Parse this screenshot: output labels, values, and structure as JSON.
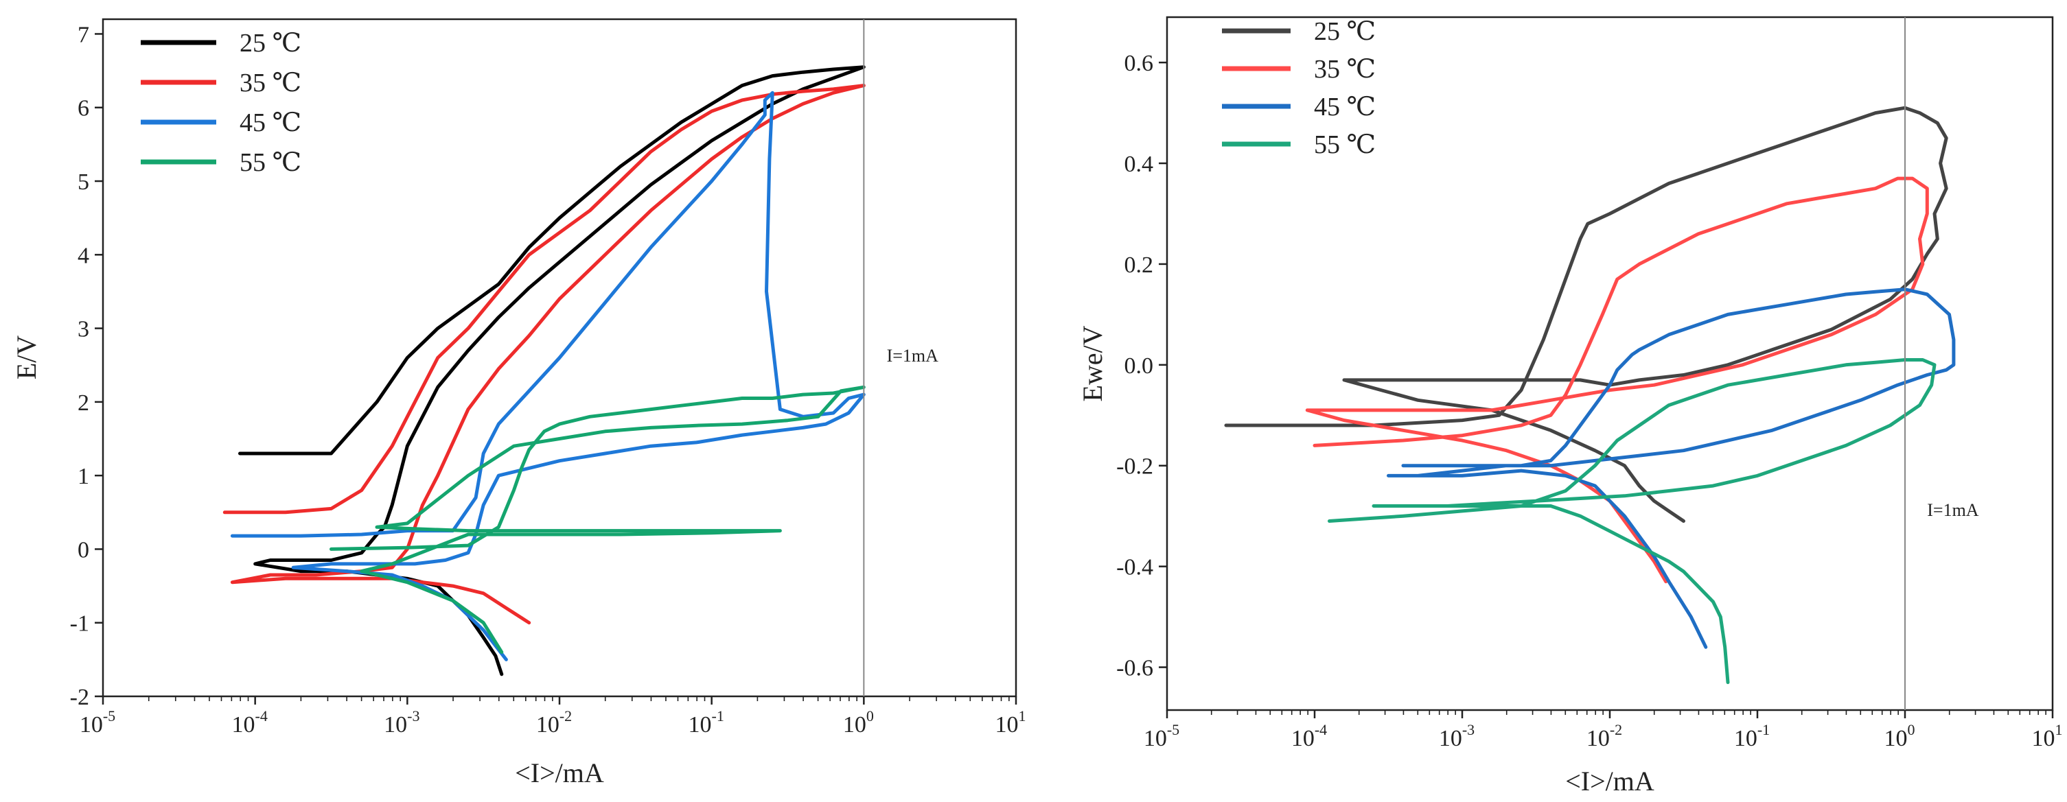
{
  "chart_data": [
    {
      "type": "line",
      "id": "left",
      "xscale": "log",
      "xlabel": "<I>/mA",
      "ylabel": "E/V",
      "xlim": [
        -5,
        1
      ],
      "ylim": [
        -2,
        7.2
      ],
      "xticks": [
        {
          "base": "10",
          "exp": "-5",
          "value": -5
        },
        {
          "base": "10",
          "exp": "-4",
          "value": -4
        },
        {
          "base": "10",
          "exp": "-3",
          "value": -3
        },
        {
          "base": "10",
          "exp": "-2",
          "value": -2
        },
        {
          "base": "10",
          "exp": "-1",
          "value": -1
        },
        {
          "base": "10",
          "exp": "0",
          "value": 0
        },
        {
          "base": "10",
          "exp": "1",
          "value": 1
        }
      ],
      "yticks": [
        {
          "label": "-2",
          "value": -2
        },
        {
          "label": "-1",
          "value": -1
        },
        {
          "label": "0",
          "value": 0
        },
        {
          "label": "1",
          "value": 1
        },
        {
          "label": "2",
          "value": 2
        },
        {
          "label": "3",
          "value": 3
        },
        {
          "label": "4",
          "value": 4
        },
        {
          "label": "5",
          "value": 5
        },
        {
          "label": "6",
          "value": 6
        },
        {
          "label": "7",
          "value": 7
        }
      ],
      "annotation": {
        "text": "I=1mA",
        "x": 0.15,
        "y": 2.55
      },
      "refline_x": 0,
      "series": [
        {
          "name": "25 ℃",
          "color": "#000000",
          "x": [
            -4.1,
            -3.8,
            -3.5,
            -3.2,
            -3.0,
            -2.8,
            -2.6,
            -2.4,
            -2.2,
            -2.0,
            -1.8,
            -1.6,
            -1.4,
            -1.2,
            -1.0,
            -0.8,
            -0.6,
            -0.4,
            -0.2,
            0.0,
            -0.2,
            -0.4,
            -0.6,
            -0.8,
            -1.0,
            -1.2,
            -1.4,
            -1.6,
            -1.8,
            -2.0,
            -2.2,
            -2.4,
            -2.6,
            -2.8,
            -3.0,
            -3.1,
            -3.15,
            -3.2,
            -3.3,
            -3.5,
            -3.9,
            -4.0,
            -3.7,
            -3.4,
            -3.2,
            -3.0,
            -2.8,
            -2.6,
            -2.5,
            -2.42,
            -2.38
          ],
          "y": [
            1.3,
            1.3,
            1.3,
            2.0,
            2.6,
            3.0,
            3.3,
            3.6,
            4.1,
            4.5,
            4.85,
            5.2,
            5.5,
            5.8,
            6.05,
            6.3,
            6.43,
            6.48,
            6.52,
            6.55,
            6.4,
            6.25,
            6.05,
            5.8,
            5.55,
            5.25,
            4.95,
            4.6,
            4.25,
            3.9,
            3.55,
            3.15,
            2.7,
            2.2,
            1.4,
            0.6,
            0.3,
            0.2,
            -0.05,
            -0.15,
            -0.15,
            -0.2,
            -0.3,
            -0.3,
            -0.35,
            -0.4,
            -0.5,
            -0.9,
            -1.2,
            -1.45,
            -1.7
          ]
        },
        {
          "name": "35 ℃",
          "color": "#ee2b2b",
          "x": [
            -4.2,
            -3.8,
            -3.5,
            -3.3,
            -3.1,
            -2.95,
            -2.8,
            -2.6,
            -2.4,
            -2.2,
            -2.0,
            -1.8,
            -1.6,
            -1.4,
            -1.2,
            -1.0,
            -0.8,
            -0.6,
            -0.4,
            -0.2,
            0.0,
            -0.2,
            -0.4,
            -0.6,
            -0.8,
            -1.0,
            -1.2,
            -1.4,
            -1.6,
            -1.8,
            -2.0,
            -2.2,
            -2.4,
            -2.6,
            -2.8,
            -2.9,
            -2.95,
            -3.0,
            -3.1,
            -3.3,
            -3.6,
            -3.9,
            -4.15,
            -3.8,
            -3.4,
            -3.1,
            -2.9,
            -2.7,
            -2.5,
            -2.35,
            -2.2
          ],
          "y": [
            0.5,
            0.5,
            0.55,
            0.8,
            1.4,
            2.0,
            2.6,
            3.0,
            3.5,
            4.0,
            4.3,
            4.6,
            5.0,
            5.4,
            5.7,
            5.95,
            6.1,
            6.18,
            6.22,
            6.25,
            6.3,
            6.2,
            6.05,
            5.85,
            5.6,
            5.3,
            4.95,
            4.6,
            4.2,
            3.8,
            3.4,
            2.9,
            2.45,
            1.9,
            1.0,
            0.6,
            0.3,
            0.0,
            -0.25,
            -0.3,
            -0.35,
            -0.35,
            -0.45,
            -0.4,
            -0.4,
            -0.4,
            -0.45,
            -0.5,
            -0.6,
            -0.8,
            -1.0
          ]
        },
        {
          "name": "45 ℃",
          "color": "#1e78d8",
          "x": [
            -4.15,
            -3.7,
            -3.3,
            -3.0,
            -2.7,
            -2.55,
            -2.5,
            -2.4,
            -2.2,
            -2.0,
            -1.8,
            -1.6,
            -1.4,
            -1.2,
            -1.0,
            -0.8,
            -0.65,
            -0.65,
            -0.6,
            -0.62,
            -0.64,
            -0.55,
            -0.4,
            -0.2,
            -0.1,
            0.0,
            -0.1,
            -0.25,
            -0.4,
            -0.6,
            -0.8,
            -1.1,
            -1.4,
            -1.7,
            -2.0,
            -2.2,
            -2.4,
            -2.5,
            -2.55,
            -2.6,
            -2.75,
            -2.95,
            -3.2,
            -3.5,
            -3.75,
            -3.4,
            -3.1,
            -2.9,
            -2.7,
            -2.5,
            -2.35
          ],
          "y": [
            0.18,
            0.18,
            0.2,
            0.25,
            0.25,
            0.7,
            1.3,
            1.7,
            2.15,
            2.6,
            3.1,
            3.6,
            4.1,
            4.55,
            5.0,
            5.5,
            5.9,
            6.1,
            6.2,
            5.3,
            3.5,
            1.9,
            1.8,
            1.85,
            2.05,
            2.1,
            1.85,
            1.7,
            1.65,
            1.6,
            1.55,
            1.45,
            1.4,
            1.3,
            1.2,
            1.1,
            1.0,
            0.6,
            0.2,
            -0.05,
            -0.15,
            -0.2,
            -0.2,
            -0.2,
            -0.25,
            -0.3,
            -0.35,
            -0.5,
            -0.7,
            -1.1,
            -1.5
          ]
        },
        {
          "name": "55 ℃",
          "color": "#14a56e",
          "x": [
            -3.5,
            -3.0,
            -2.6,
            -2.4,
            -2.3,
            -2.25,
            -2.2,
            -2.1,
            -2.0,
            -1.8,
            -1.6,
            -1.4,
            -1.2,
            -1.0,
            -0.8,
            -0.6,
            -0.4,
            -0.2,
            -0.05,
            0.0,
            -0.15,
            -0.3,
            -0.5,
            -0.8,
            -1.1,
            -1.4,
            -1.7,
            -2.0,
            -2.3,
            -2.6,
            -3.0,
            -3.2,
            -3.0,
            -2.6,
            -2.2,
            -1.8,
            -1.4,
            -1.0,
            -0.7,
            -0.55,
            -1.0,
            -1.6,
            -2.2,
            -2.6,
            -2.85,
            -3.1,
            -3.3,
            -3.0,
            -2.7,
            -2.5,
            -2.38
          ],
          "y": [
            0.0,
            0.02,
            0.05,
            0.3,
            0.8,
            1.1,
            1.35,
            1.6,
            1.7,
            1.8,
            1.85,
            1.9,
            1.95,
            2.0,
            2.05,
            2.05,
            2.1,
            2.12,
            2.18,
            2.2,
            2.15,
            1.8,
            1.75,
            1.7,
            1.68,
            1.65,
            1.6,
            1.5,
            1.4,
            1.0,
            0.35,
            0.3,
            0.28,
            0.25,
            0.25,
            0.25,
            0.25,
            0.25,
            0.25,
            0.25,
            0.22,
            0.2,
            0.2,
            0.2,
            0.0,
            -0.2,
            -0.3,
            -0.45,
            -0.7,
            -1.0,
            -1.4
          ]
        }
      ]
    },
    {
      "type": "line",
      "id": "right",
      "xscale": "log",
      "xlabel": "<I>/mA",
      "ylabel": "Ewe/V",
      "xlim": [
        -5,
        1
      ],
      "ylim": [
        -0.685,
        0.69
      ],
      "xticks": [
        {
          "base": "10",
          "exp": "-5",
          "value": -5
        },
        {
          "base": "10",
          "exp": "-4",
          "value": -4
        },
        {
          "base": "10",
          "exp": "-3",
          "value": -3
        },
        {
          "base": "10",
          "exp": "-2",
          "value": -2
        },
        {
          "base": "10",
          "exp": "-1",
          "value": -1
        },
        {
          "base": "10",
          "exp": "0",
          "value": 0
        },
        {
          "base": "10",
          "exp": "1",
          "value": 1
        }
      ],
      "yticks": [
        {
          "label": "-0.6",
          "value": -0.6
        },
        {
          "label": "-0.4",
          "value": -0.4
        },
        {
          "label": "-0.2",
          "value": -0.2
        },
        {
          "label": "0.0",
          "value": 0.0
        },
        {
          "label": "0.2",
          "value": 0.2
        },
        {
          "label": "0.4",
          "value": 0.4
        },
        {
          "label": "0.6",
          "value": 0.6
        }
      ],
      "annotation": {
        "text": "I=1mA",
        "x": 0.15,
        "y": -0.3
      },
      "refline_x": 0,
      "series": [
        {
          "name": "25 ℃",
          "color": "#444444",
          "x": [
            -4.6,
            -3.6,
            -3.0,
            -2.75,
            -2.6,
            -2.45,
            -2.3,
            -2.2,
            -2.15,
            -2.0,
            -1.8,
            -1.6,
            -1.4,
            -1.2,
            -1.0,
            -0.8,
            -0.6,
            -0.4,
            -0.2,
            0.0,
            0.1,
            0.22,
            0.28,
            0.24,
            0.28,
            0.2,
            0.22,
            0.15,
            0.05,
            -0.1,
            -0.3,
            -0.5,
            -0.7,
            -0.9,
            -1.2,
            -1.5,
            -1.8,
            -2.0,
            -2.2,
            -2.5,
            -3.2,
            -3.8,
            -3.3,
            -2.8,
            -2.4,
            -2.1,
            -1.9,
            -1.8,
            -1.7,
            -1.6,
            -1.5
          ],
          "y": [
            -0.12,
            -0.12,
            -0.11,
            -0.1,
            -0.05,
            0.05,
            0.17,
            0.25,
            0.28,
            0.3,
            0.33,
            0.36,
            0.38,
            0.4,
            0.42,
            0.44,
            0.46,
            0.48,
            0.5,
            0.51,
            0.5,
            0.48,
            0.45,
            0.4,
            0.35,
            0.3,
            0.25,
            0.22,
            0.17,
            0.13,
            0.1,
            0.07,
            0.05,
            0.03,
            0.0,
            -0.02,
            -0.03,
            -0.04,
            -0.03,
            -0.03,
            -0.03,
            -0.03,
            -0.07,
            -0.09,
            -0.13,
            -0.17,
            -0.2,
            -0.24,
            -0.27,
            -0.29,
            -0.31
          ]
        },
        {
          "name": "35 ℃",
          "color": "#ff4a4a",
          "x": [
            -4.0,
            -3.4,
            -3.0,
            -2.6,
            -2.4,
            -2.3,
            -2.2,
            -2.05,
            -1.95,
            -1.8,
            -1.6,
            -1.4,
            -1.2,
            -1.0,
            -0.8,
            -0.6,
            -0.4,
            -0.2,
            -0.05,
            0.05,
            0.15,
            0.15,
            0.1,
            0.12,
            0.05,
            -0.2,
            -0.5,
            -0.8,
            -1.1,
            -1.4,
            -1.7,
            -2.0,
            -2.2,
            -2.4,
            -2.6,
            -2.8,
            -3.1,
            -3.5,
            -3.9,
            -4.05,
            -3.8,
            -3.4,
            -3.0,
            -2.7,
            -2.4,
            -2.2,
            -2.0,
            -1.9,
            -1.8,
            -1.7,
            -1.62
          ],
          "y": [
            -0.16,
            -0.15,
            -0.14,
            -0.12,
            -0.1,
            -0.06,
            0.0,
            0.1,
            0.17,
            0.2,
            0.23,
            0.26,
            0.28,
            0.3,
            0.32,
            0.33,
            0.34,
            0.35,
            0.37,
            0.37,
            0.35,
            0.3,
            0.25,
            0.2,
            0.15,
            0.1,
            0.06,
            0.03,
            0.0,
            -0.02,
            -0.04,
            -0.05,
            -0.06,
            -0.07,
            -0.08,
            -0.09,
            -0.09,
            -0.09,
            -0.09,
            -0.09,
            -0.11,
            -0.13,
            -0.15,
            -0.17,
            -0.2,
            -0.23,
            -0.27,
            -0.31,
            -0.35,
            -0.39,
            -0.43
          ]
        },
        {
          "name": "45 ℃",
          "color": "#1f6ec4",
          "x": [
            -3.4,
            -3.0,
            -2.6,
            -2.4,
            -2.3,
            -2.2,
            -2.1,
            -2.0,
            -1.95,
            -1.85,
            -1.8,
            -1.6,
            -1.4,
            -1.2,
            -1.0,
            -0.8,
            -0.6,
            -0.4,
            -0.2,
            0.0,
            0.15,
            0.3,
            0.33,
            0.33,
            0.28,
            0.15,
            -0.05,
            -0.3,
            -0.6,
            -0.9,
            -1.2,
            -1.5,
            -1.8,
            -2.1,
            -2.4,
            -2.7,
            -3.0,
            -3.3,
            -3.5,
            -3.3,
            -3.0,
            -2.6,
            -2.3,
            -2.1,
            -2.0,
            -1.9,
            -1.8,
            -1.7,
            -1.6,
            -1.45,
            -1.35
          ],
          "y": [
            -0.2,
            -0.2,
            -0.2,
            -0.19,
            -0.16,
            -0.12,
            -0.08,
            -0.04,
            -0.01,
            0.02,
            0.03,
            0.06,
            0.08,
            0.1,
            0.11,
            0.12,
            0.13,
            0.14,
            0.145,
            0.15,
            0.14,
            0.1,
            0.05,
            0.0,
            -0.01,
            -0.02,
            -0.04,
            -0.07,
            -0.1,
            -0.13,
            -0.15,
            -0.17,
            -0.18,
            -0.19,
            -0.2,
            -0.2,
            -0.21,
            -0.22,
            -0.22,
            -0.22,
            -0.22,
            -0.21,
            -0.22,
            -0.24,
            -0.27,
            -0.3,
            -0.34,
            -0.38,
            -0.43,
            -0.5,
            -0.56
          ]
        },
        {
          "name": "55 ℃",
          "color": "#1ea77c",
          "x": [
            -3.9,
            -3.4,
            -3.0,
            -2.6,
            -2.3,
            -2.1,
            -1.95,
            -1.8,
            -1.7,
            -1.6,
            -1.4,
            -1.2,
            -1.0,
            -0.8,
            -0.6,
            -0.4,
            -0.2,
            0.0,
            0.12,
            0.2,
            0.18,
            0.1,
            -0.1,
            -0.4,
            -0.7,
            -1.0,
            -1.3,
            -1.6,
            -1.9,
            -2.2,
            -2.5,
            -2.8,
            -3.1,
            -3.4,
            -3.6,
            -3.3,
            -3.0,
            -2.7,
            -2.4,
            -2.2,
            -2.0,
            -1.8,
            -1.6,
            -1.5,
            -1.4,
            -1.3,
            -1.25,
            -1.22,
            -1.2
          ],
          "y": [
            -0.31,
            -0.3,
            -0.29,
            -0.28,
            -0.25,
            -0.2,
            -0.15,
            -0.12,
            -0.1,
            -0.08,
            -0.06,
            -0.04,
            -0.03,
            -0.02,
            -0.01,
            0.0,
            0.005,
            0.01,
            0.01,
            0.0,
            -0.04,
            -0.08,
            -0.12,
            -0.16,
            -0.19,
            -0.22,
            -0.24,
            -0.25,
            -0.26,
            -0.265,
            -0.27,
            -0.275,
            -0.28,
            -0.28,
            -0.28,
            -0.28,
            -0.28,
            -0.28,
            -0.28,
            -0.3,
            -0.33,
            -0.36,
            -0.39,
            -0.41,
            -0.44,
            -0.47,
            -0.5,
            -0.56,
            -0.63
          ]
        }
      ]
    }
  ]
}
